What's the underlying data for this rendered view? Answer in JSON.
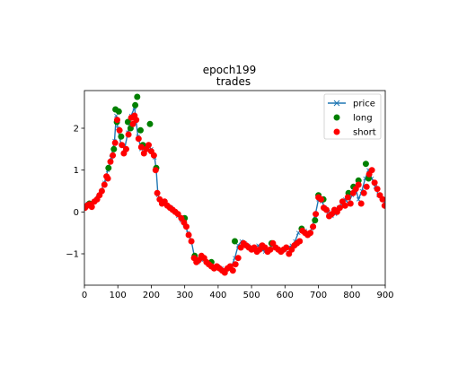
{
  "chart_data": {
    "type": "line",
    "title": "epoch199",
    "subtitle": "trades",
    "xlabel": "",
    "ylabel": "",
    "xlim": [
      0,
      900
    ],
    "ylim": [
      -1.75,
      2.9
    ],
    "xticks": [
      0,
      100,
      200,
      300,
      400,
      500,
      600,
      700,
      800,
      900
    ],
    "yticks": [
      -1,
      0,
      1,
      2
    ],
    "ytick_labels": [
      "−1",
      "0",
      "1",
      "2"
    ],
    "grid": false,
    "legend_position": "top-right",
    "colors": {
      "price": "#1f77b4",
      "long": "#008000",
      "short": "#ff0000"
    },
    "series": [
      {
        "name": "price",
        "style": "line-x-markers",
        "x": [
          0,
          10,
          20,
          30,
          40,
          50,
          60,
          70,
          80,
          90,
          95,
          100,
          110,
          120,
          130,
          140,
          150,
          160,
          170,
          180,
          190,
          200,
          210,
          215,
          220,
          230,
          240,
          250,
          260,
          270,
          280,
          290,
          300,
          310,
          320,
          330,
          340,
          350,
          360,
          370,
          380,
          390,
          400,
          410,
          420,
          430,
          440,
          450,
          460,
          470,
          480,
          490,
          500,
          510,
          520,
          530,
          540,
          550,
          560,
          570,
          580,
          590,
          600,
          610,
          620,
          630,
          640,
          650,
          660,
          670,
          680,
          690,
          700,
          710,
          720,
          730,
          740,
          750,
          760,
          770,
          780,
          790,
          800,
          810,
          820,
          830,
          840,
          850,
          860,
          870,
          880,
          890,
          900
        ],
        "y": [
          0.15,
          0.2,
          0.18,
          0.25,
          0.35,
          0.5,
          0.7,
          1.0,
          1.3,
          1.7,
          2.3,
          2.0,
          1.6,
          1.5,
          1.9,
          2.3,
          2.5,
          1.8,
          1.5,
          1.5,
          1.6,
          1.5,
          1.3,
          1.0,
          0.4,
          0.25,
          0.2,
          0.15,
          0.1,
          0.0,
          -0.1,
          -0.2,
          -0.3,
          -0.5,
          -0.7,
          -1.1,
          -1.2,
          -1.15,
          -1.1,
          -1.2,
          -1.3,
          -1.35,
          -1.3,
          -1.35,
          -1.4,
          -1.35,
          -1.3,
          -1.1,
          -0.8,
          -0.7,
          -0.75,
          -0.8,
          -0.9,
          -0.85,
          -0.8,
          -0.9,
          -0.95,
          -0.9,
          -0.8,
          -0.85,
          -0.9,
          -0.95,
          -0.9,
          -0.85,
          -0.8,
          -0.7,
          -0.5,
          -0.4,
          -0.45,
          -0.55,
          -0.4,
          -0.1,
          0.3,
          0.25,
          0.1,
          0.0,
          -0.1,
          -0.05,
          0.1,
          0.15,
          0.3,
          0.2,
          0.4,
          0.6,
          0.3,
          0.5,
          0.8,
          1.0,
          0.8,
          0.6,
          0.4,
          0.3,
          0.2
        ]
      },
      {
        "name": "long",
        "style": "markers",
        "x": [
          15,
          72,
          88,
          93,
          97,
          103,
          110,
          130,
          138,
          152,
          158,
          168,
          175,
          185,
          196,
          215,
          300,
          330,
          380,
          450,
          560,
          650,
          690,
          700,
          715,
          790,
          805,
          820,
          842,
          850
        ],
        "y": [
          0.2,
          1.05,
          1.5,
          2.45,
          2.15,
          2.4,
          1.8,
          2.15,
          2.0,
          2.55,
          2.75,
          1.95,
          1.6,
          1.55,
          2.1,
          1.05,
          -0.15,
          -1.05,
          -1.2,
          -0.7,
          -0.75,
          -0.4,
          -0.2,
          0.4,
          0.3,
          0.45,
          0.6,
          0.75,
          1.15,
          0.8
        ]
      },
      {
        "name": "short",
        "style": "markers",
        "x": [
          2,
          8,
          15,
          22,
          30,
          38,
          45,
          52,
          60,
          66,
          70,
          78,
          85,
          92,
          98,
          105,
          112,
          118,
          125,
          132,
          140,
          145,
          150,
          155,
          162,
          170,
          178,
          185,
          192,
          200,
          208,
          213,
          218,
          225,
          232,
          240,
          248,
          256,
          264,
          272,
          280,
          290,
          298,
          305,
          312,
          320,
          328,
          335,
          342,
          350,
          358,
          365,
          372,
          380,
          388,
          396,
          404,
          412,
          420,
          428,
          436,
          444,
          452,
          460,
          468,
          476,
          484,
          492,
          500,
          508,
          516,
          524,
          532,
          540,
          548,
          556,
          564,
          572,
          580,
          588,
          596,
          604,
          612,
          620,
          628,
          636,
          644,
          652,
          660,
          668,
          676,
          684,
          692,
          700,
          708,
          716,
          724,
          732,
          740,
          748,
          756,
          764,
          772,
          780,
          788,
          796,
          804,
          812,
          820,
          828,
          836,
          844,
          852,
          860,
          868,
          876,
          884,
          892,
          898
        ],
        "y": [
          0.1,
          0.15,
          0.18,
          0.12,
          0.25,
          0.3,
          0.4,
          0.5,
          0.65,
          0.85,
          0.8,
          1.2,
          1.35,
          1.65,
          2.2,
          1.95,
          1.6,
          1.4,
          1.5,
          1.85,
          2.25,
          2.1,
          2.3,
          2.2,
          1.75,
          1.55,
          1.4,
          1.5,
          1.6,
          1.45,
          1.35,
          1.0,
          0.45,
          0.3,
          0.2,
          0.25,
          0.15,
          0.1,
          0.05,
          0.0,
          -0.05,
          -0.15,
          -0.25,
          -0.35,
          -0.55,
          -0.7,
          -1.1,
          -1.2,
          -1.15,
          -1.05,
          -1.1,
          -1.2,
          -1.25,
          -1.3,
          -1.35,
          -1.3,
          -1.35,
          -1.4,
          -1.45,
          -1.35,
          -1.3,
          -1.4,
          -1.25,
          -1.1,
          -0.85,
          -0.75,
          -0.8,
          -0.85,
          -0.9,
          -0.85,
          -0.95,
          -0.9,
          -0.8,
          -0.85,
          -0.95,
          -0.9,
          -0.75,
          -0.85,
          -0.9,
          -0.95,
          -0.9,
          -0.85,
          -1.0,
          -0.9,
          -0.8,
          -0.75,
          -0.7,
          -0.45,
          -0.5,
          -0.55,
          -0.5,
          -0.35,
          -0.05,
          0.35,
          0.3,
          0.1,
          0.05,
          -0.1,
          -0.05,
          0.05,
          0.0,
          0.1,
          0.25,
          0.15,
          0.35,
          0.2,
          0.45,
          0.55,
          0.65,
          0.2,
          0.45,
          0.6,
          0.9,
          1.0,
          0.7,
          0.55,
          0.4,
          0.3,
          0.15
        ]
      }
    ]
  }
}
